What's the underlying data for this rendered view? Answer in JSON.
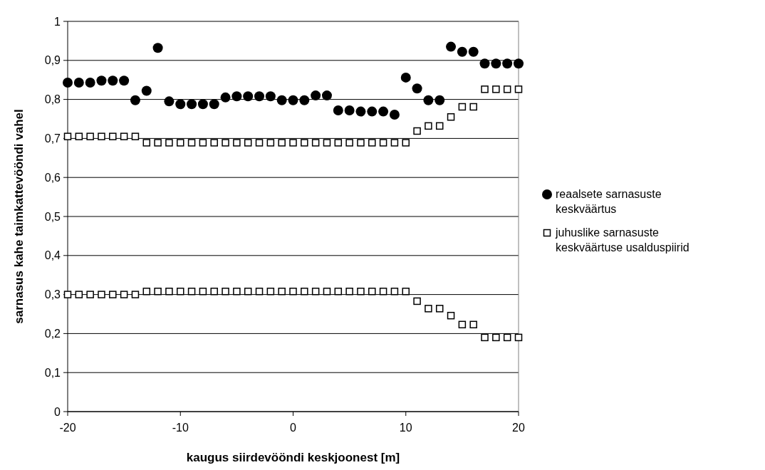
{
  "chart_data": {
    "type": "scatter",
    "xlabel": "kaugus siirdevööndi keskjoonest [m]",
    "ylabel": "sarnasus kahe taimkattevööndi vahel",
    "xlim": [
      -20,
      20
    ],
    "xticks": [
      -20,
      -10,
      0,
      10,
      20
    ],
    "ylim": [
      0,
      1
    ],
    "yticks": [
      0,
      {
        "value": 0.1,
        "label": "0,1"
      },
      {
        "value": 0.2,
        "label": "0,2"
      },
      {
        "value": 0.3,
        "label": "0,3"
      },
      {
        "value": 0.4,
        "label": "0,4"
      },
      {
        "value": 0.5,
        "label": "0,5"
      },
      {
        "value": 0.6,
        "label": "0,6"
      },
      {
        "value": 0.7,
        "label": "0,7"
      },
      {
        "value": 0.8,
        "label": "0,8"
      },
      {
        "value": 0.9,
        "label": "0,9"
      },
      1
    ],
    "grid": "y",
    "legend": "right",
    "series": [
      {
        "name": "reaalsete sarnasuste keskväärtus",
        "color": "#000000",
        "marker": "circle",
        "x": [
          -20,
          -19,
          -18,
          -17,
          -16,
          -15,
          -14,
          -13,
          -12,
          -11,
          -10,
          -9,
          -8,
          -7,
          -6,
          -5,
          -4,
          -3,
          -2,
          -1,
          0,
          1,
          2,
          3,
          4,
          5,
          6,
          7,
          8,
          9,
          10,
          11,
          12,
          13,
          14,
          15,
          16,
          17,
          18,
          19,
          20
        ],
        "values": [
          0.843,
          0.843,
          0.843,
          0.848,
          0.848,
          0.848,
          0.798,
          0.822,
          0.932,
          0.795,
          0.788,
          0.788,
          0.788,
          0.788,
          0.805,
          0.808,
          0.808,
          0.808,
          0.808,
          0.798,
          0.798,
          0.798,
          0.81,
          0.81,
          0.772,
          0.772,
          0.769,
          0.769,
          0.769,
          0.761,
          0.856,
          0.828,
          0.798,
          0.798,
          0.935,
          0.922,
          0.922,
          0.892,
          0.892,
          0.892,
          0.892
        ]
      },
      {
        "name": "juhuslike sarnasuste keskväärtuse usalduspiirid",
        "color": "#000000",
        "marker": "square",
        "x": [
          -20,
          -19,
          -18,
          -17,
          -16,
          -15,
          -14,
          -13,
          -12,
          -11,
          -10,
          -9,
          -8,
          -7,
          -6,
          -5,
          -4,
          -3,
          -2,
          -1,
          0,
          1,
          2,
          3,
          4,
          5,
          6,
          7,
          8,
          9,
          10,
          11,
          12,
          13,
          14,
          15,
          16,
          17,
          18,
          19,
          20,
          -20,
          -19,
          -18,
          -17,
          -16,
          -15,
          -14,
          -13,
          -12,
          -11,
          -10,
          -9,
          -8,
          -7,
          -6,
          -5,
          -4,
          -3,
          -2,
          -1,
          0,
          1,
          2,
          3,
          4,
          5,
          6,
          7,
          8,
          9,
          10,
          11,
          12,
          13,
          14,
          15,
          16,
          17,
          18,
          19,
          20
        ],
        "values": [
          0.705,
          0.705,
          0.705,
          0.705,
          0.705,
          0.705,
          0.705,
          0.689,
          0.689,
          0.689,
          0.689,
          0.689,
          0.689,
          0.689,
          0.689,
          0.689,
          0.689,
          0.689,
          0.689,
          0.689,
          0.689,
          0.689,
          0.689,
          0.689,
          0.689,
          0.689,
          0.689,
          0.689,
          0.689,
          0.689,
          0.689,
          0.719,
          0.732,
          0.732,
          0.755,
          0.781,
          0.781,
          0.826,
          0.826,
          0.826,
          0.826,
          0.3,
          0.3,
          0.3,
          0.3,
          0.3,
          0.3,
          0.3,
          0.308,
          0.308,
          0.308,
          0.308,
          0.308,
          0.308,
          0.308,
          0.308,
          0.308,
          0.308,
          0.308,
          0.308,
          0.308,
          0.308,
          0.308,
          0.308,
          0.308,
          0.308,
          0.308,
          0.308,
          0.308,
          0.308,
          0.308,
          0.308,
          0.283,
          0.264,
          0.264,
          0.246,
          0.223,
          0.223,
          0.19,
          0.19,
          0.19,
          0.19
        ]
      }
    ]
  }
}
